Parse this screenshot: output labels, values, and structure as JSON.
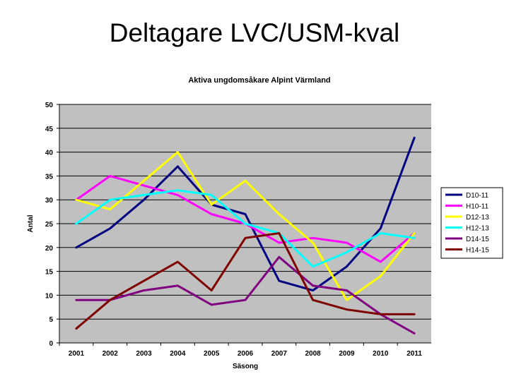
{
  "slide": {
    "title": "Deltagare LVC/USM-kval"
  },
  "chart_data": {
    "type": "line",
    "title": "Aktiva ungdomsåkare Alpint Värmland",
    "xlabel": "Säsong",
    "ylabel": "Antal",
    "ylim": [
      0,
      50
    ],
    "yticks": [
      0,
      5,
      10,
      15,
      20,
      25,
      30,
      35,
      40,
      45,
      50
    ],
    "categories": [
      "2001",
      "2002",
      "2003",
      "2004",
      "2005",
      "2006",
      "2007",
      "2008",
      "2009",
      "2010",
      "2011"
    ],
    "grid": true,
    "legend_position": "right",
    "plot_background": "#c0c0c0",
    "series": [
      {
        "name": "D10-11",
        "color": "#000080",
        "values": [
          20,
          24,
          30,
          37,
          29,
          27,
          13,
          11,
          16,
          24,
          43
        ]
      },
      {
        "name": "H10-11",
        "color": "#ff00ff",
        "values": [
          30,
          35,
          33,
          31,
          27,
          25,
          21,
          22,
          21,
          17,
          23
        ]
      },
      {
        "name": "D12-13",
        "color": "#ffff00",
        "values": [
          30,
          28,
          34,
          40,
          29,
          34,
          27,
          21,
          9,
          14,
          23
        ]
      },
      {
        "name": "H12-13",
        "color": "#00ffff",
        "values": [
          25,
          30,
          31,
          32,
          31,
          25,
          23,
          16,
          19,
          23,
          22
        ]
      },
      {
        "name": "D14-15",
        "color": "#800080",
        "values": [
          9,
          9,
          11,
          12,
          8,
          9,
          18,
          12,
          11,
          6,
          2
        ]
      },
      {
        "name": "H14-15",
        "color": "#800000",
        "values": [
          3,
          9,
          13,
          17,
          11,
          22,
          23,
          9,
          7,
          6,
          6
        ]
      }
    ]
  }
}
